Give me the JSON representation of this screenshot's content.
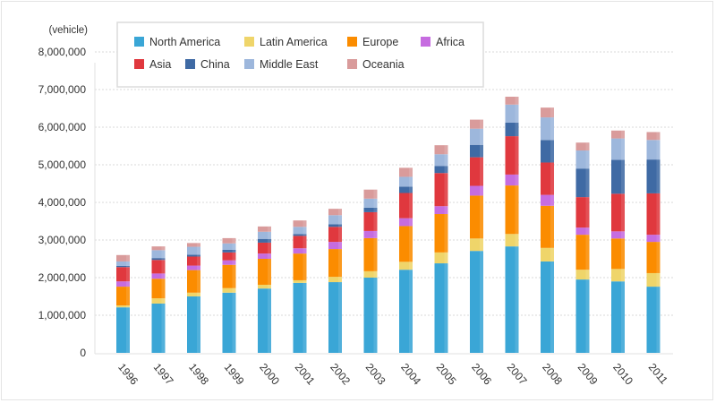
{
  "chart_data": {
    "type": "bar",
    "stacked": true,
    "title": "",
    "xlabel": "",
    "ylabel": "(vehicle)",
    "ylim": [
      0,
      8000000
    ],
    "yticks": [
      0,
      1000000,
      2000000,
      3000000,
      4000000,
      5000000,
      6000000,
      7000000,
      8000000
    ],
    "ytick_labels": [
      "0",
      "1,000,000",
      "2,000,000",
      "3,000,000",
      "4,000,000",
      "5,000,000",
      "6,000,000",
      "7,000,000",
      "8,000,000"
    ],
    "grid": "horizontal-dotted",
    "legend_position": "top-left-inside",
    "categories": [
      "1996",
      "1997",
      "1998",
      "1999",
      "2000",
      "2001",
      "2002",
      "2003",
      "2004",
      "2005",
      "2006",
      "2007",
      "2008",
      "2009",
      "2010",
      "2011"
    ],
    "series": [
      {
        "name": "North America",
        "color": "#3aa6d6",
        "values": [
          1210000,
          1310000,
          1500000,
          1600000,
          1710000,
          1860000,
          1880000,
          2000000,
          2210000,
          2380000,
          2710000,
          2830000,
          2430000,
          1950000,
          1900000,
          1760000
        ]
      },
      {
        "name": "Latin America",
        "color": "#efd56a",
        "values": [
          50000,
          140000,
          100000,
          120000,
          100000,
          70000,
          140000,
          170000,
          210000,
          290000,
          330000,
          330000,
          360000,
          260000,
          330000,
          360000
        ]
      },
      {
        "name": "Europe",
        "color": "#fb8c00",
        "values": [
          500000,
          520000,
          600000,
          620000,
          690000,
          710000,
          740000,
          880000,
          950000,
          1020000,
          1140000,
          1290000,
          1120000,
          930000,
          810000,
          830000
        ]
      },
      {
        "name": "Africa",
        "color": "#c66ce0",
        "values": [
          140000,
          140000,
          120000,
          120000,
          140000,
          140000,
          190000,
          190000,
          210000,
          210000,
          260000,
          290000,
          290000,
          190000,
          190000,
          190000
        ]
      },
      {
        "name": "Asia",
        "color": "#e0383e",
        "values": [
          380000,
          360000,
          240000,
          210000,
          290000,
          330000,
          400000,
          500000,
          670000,
          880000,
          760000,
          1020000,
          860000,
          810000,
          1000000,
          1100000
        ]
      },
      {
        "name": "China",
        "color": "#3f6aa4",
        "values": [
          30000,
          50000,
          50000,
          70000,
          100000,
          50000,
          70000,
          120000,
          170000,
          190000,
          330000,
          360000,
          600000,
          760000,
          900000,
          900000
        ]
      },
      {
        "name": "Middle East",
        "color": "#9db7dc",
        "values": [
          120000,
          210000,
          210000,
          170000,
          190000,
          190000,
          240000,
          240000,
          260000,
          310000,
          430000,
          480000,
          600000,
          480000,
          570000,
          520000
        ]
      },
      {
        "name": "Oceania",
        "color": "#d99b9b",
        "values": [
          170000,
          100000,
          100000,
          140000,
          140000,
          170000,
          170000,
          240000,
          240000,
          240000,
          240000,
          210000,
          260000,
          210000,
          210000,
          210000
        ]
      }
    ]
  }
}
